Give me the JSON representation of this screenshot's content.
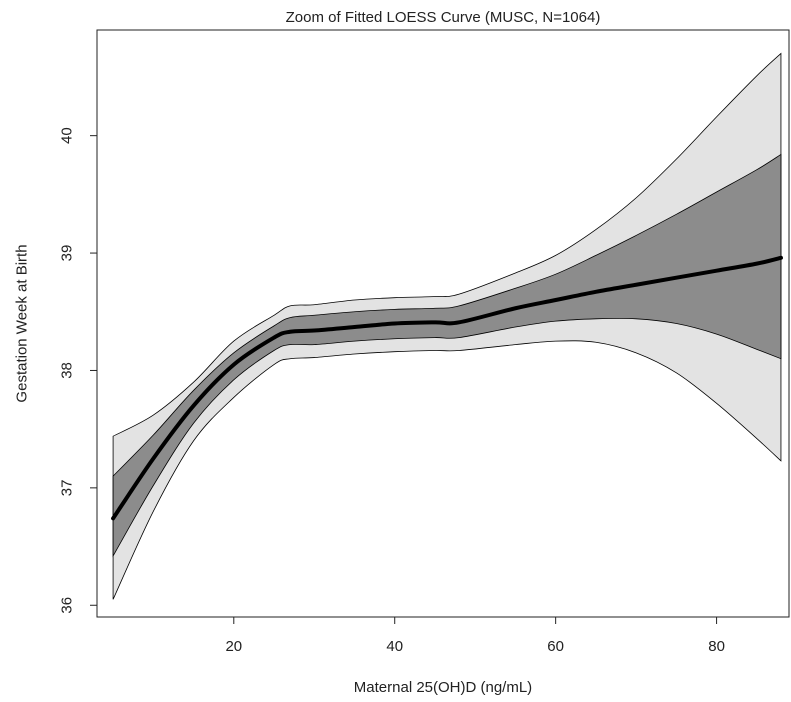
{
  "chart_data": {
    "type": "line",
    "title": "Zoom of Fitted LOESS Curve (MUSC, N=1064)",
    "xlabel": "Maternal 25(OH)D (ng/mL)",
    "ylabel": "Gestation Week at Birth",
    "xlim": [
      3,
      89
    ],
    "ylim": [
      35.9,
      40.9
    ],
    "x_ticks": [
      20,
      40,
      60,
      80
    ],
    "y_ticks": [
      36,
      37,
      38,
      39,
      40
    ],
    "grid": false,
    "x": [
      5,
      10,
      15,
      20,
      25,
      27,
      30,
      35,
      40,
      45,
      48,
      55,
      60,
      65,
      70,
      75,
      80,
      85,
      88
    ],
    "series": [
      {
        "role": "fit",
        "color": "#000000",
        "values": [
          36.74,
          37.25,
          37.7,
          38.05,
          38.28,
          38.33,
          38.34,
          38.37,
          38.4,
          38.41,
          38.41,
          38.53,
          38.6,
          38.67,
          38.73,
          38.79,
          38.85,
          38.91,
          38.96
        ]
      },
      {
        "role": "inner_band_upper",
        "color": "#8c8c8c",
        "values": [
          37.1,
          37.45,
          37.83,
          38.15,
          38.38,
          38.45,
          38.47,
          38.5,
          38.52,
          38.53,
          38.55,
          38.7,
          38.82,
          38.98,
          39.15,
          39.33,
          39.52,
          39.71,
          39.84
        ]
      },
      {
        "role": "inner_band_lower",
        "color": "#8c8c8c",
        "values": [
          36.42,
          37.02,
          37.55,
          37.92,
          38.17,
          38.22,
          38.22,
          38.25,
          38.27,
          38.28,
          38.28,
          38.37,
          38.42,
          38.44,
          38.44,
          38.4,
          38.31,
          38.18,
          38.1
        ]
      },
      {
        "role": "outer_band_upper",
        "color": "#e3e3e3",
        "values": [
          37.44,
          37.62,
          37.9,
          38.25,
          38.47,
          38.55,
          38.56,
          38.6,
          38.62,
          38.63,
          38.65,
          38.83,
          38.98,
          39.2,
          39.47,
          39.8,
          40.16,
          40.51,
          40.7
        ]
      },
      {
        "role": "outer_band_lower",
        "color": "#e3e3e3",
        "values": [
          36.05,
          36.8,
          37.4,
          37.77,
          38.05,
          38.1,
          38.11,
          38.14,
          38.16,
          38.17,
          38.17,
          38.22,
          38.25,
          38.24,
          38.15,
          37.98,
          37.72,
          37.42,
          37.23
        ]
      }
    ]
  }
}
